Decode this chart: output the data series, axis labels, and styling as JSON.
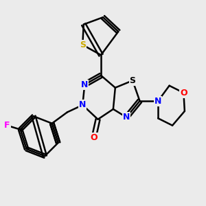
{
  "bg_color": "#ebebeb",
  "bond_color": "#000000",
  "bond_width": 1.8,
  "atom_colors": {
    "N": "#0000ff",
    "O": "#ff0000",
    "S_thio": "#ccaa00",
    "S_thiazole": "#000000",
    "F": "#ff00ff",
    "C": "#000000"
  }
}
